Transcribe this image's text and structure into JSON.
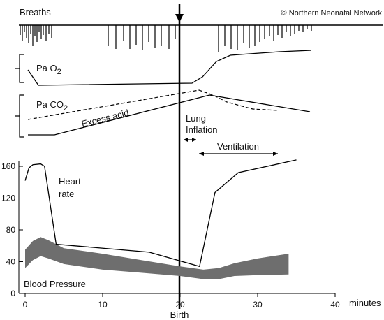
{
  "header": {
    "breaths_label": "Breaths",
    "copyright": "© Northern Neonatal Network"
  },
  "labels": {
    "pao2": "Pa O",
    "pao2_sub": "2",
    "paco2": "Pa CO",
    "paco2_sub": "2",
    "excess_acid": "Excess acid",
    "lung_inflation_line1": "Lung",
    "lung_inflation_line2": "Inflation",
    "ventilation": "Ventilation",
    "heart_rate_line1": "Heart",
    "heart_rate_line2": "rate",
    "blood_pressure": "Blood Pressure",
    "birth": "Birth",
    "x_unit": "minutes"
  },
  "x_axis": {
    "ticks": [
      0,
      10,
      20,
      30,
      40
    ],
    "tick_labels": [
      "0",
      "10",
      "20",
      "30",
      "40"
    ],
    "range": [
      0,
      45
    ]
  },
  "y_axis": {
    "ticks": [
      0,
      40,
      80,
      120,
      160
    ],
    "tick_labels": [
      "0",
      "40",
      "80",
      "120",
      "160"
    ],
    "range": [
      0,
      170
    ]
  },
  "series": {
    "heart_rate": {
      "x": [
        0,
        0.5,
        1,
        2,
        2.5,
        4,
        16,
        22.5,
        24.5,
        27.5,
        35
      ],
      "y": [
        142,
        158,
        162,
        163,
        160,
        62,
        52,
        34,
        127,
        152,
        168
      ]
    },
    "blood_pressure_upper": {
      "x": [
        0,
        1,
        2,
        3,
        5,
        10,
        15,
        20,
        23,
        25,
        27,
        30,
        34
      ],
      "y": [
        55,
        66,
        71,
        67,
        57,
        50,
        42,
        34,
        30,
        32,
        38,
        44,
        50
      ]
    },
    "blood_pressure_lower": {
      "x": [
        0,
        1,
        2,
        3,
        5,
        10,
        15,
        20,
        23,
        25,
        27,
        30,
        34
      ],
      "y": [
        32,
        42,
        47,
        44,
        37,
        30,
        26,
        22,
        18,
        18,
        22,
        23,
        24
      ]
    }
  },
  "colors": {
    "line": "#000000",
    "blood_pressure_band": "#6e6e6e",
    "background": "#ffffff"
  }
}
